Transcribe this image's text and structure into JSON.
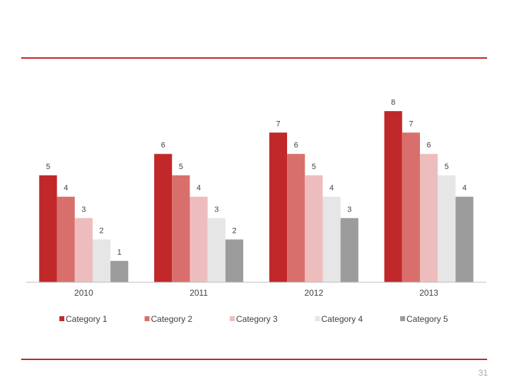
{
  "slide": {
    "page_number": "31",
    "rule_color": "#c0282a"
  },
  "chart_data": {
    "type": "bar",
    "title": "",
    "xlabel": "",
    "ylabel": "",
    "ylim": [
      0,
      8.6
    ],
    "grid": false,
    "legend": "bottom",
    "categories": [
      "2010",
      "2011",
      "2012",
      "2013"
    ],
    "series": [
      {
        "name": "Category 1",
        "color": "#c0282a",
        "values": [
          5,
          6,
          7,
          8
        ]
      },
      {
        "name": "Category 2",
        "color": "#d96f6c",
        "values": [
          4,
          5,
          6,
          7
        ]
      },
      {
        "name": "Category 3",
        "color": "#edbdbd",
        "values": [
          3,
          4,
          5,
          6
        ]
      },
      {
        "name": "Category 4",
        "color": "#e6e6e6",
        "values": [
          2,
          3,
          4,
          5
        ]
      },
      {
        "name": "Category 5",
        "color": "#9c9c9c",
        "values": [
          1,
          2,
          3,
          4
        ]
      }
    ]
  }
}
